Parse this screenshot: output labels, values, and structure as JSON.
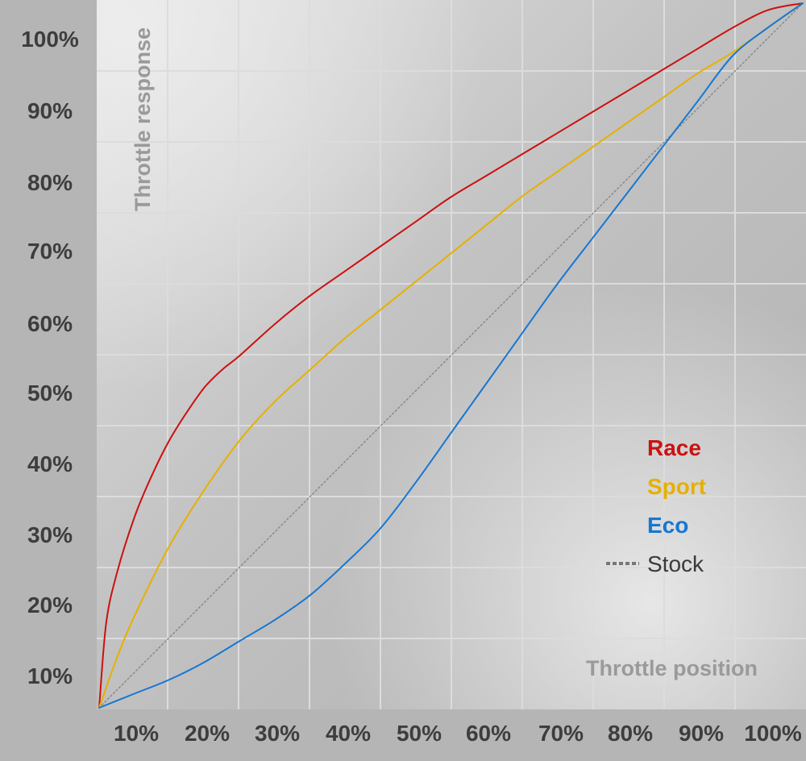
{
  "chart_data": {
    "type": "line",
    "ylabel": "Throttle response",
    "xlabel": "Throttle position",
    "x_ticks": [
      "10%",
      "20%",
      "30%",
      "40%",
      "50%",
      "60%",
      "70%",
      "80%",
      "90%",
      "100%"
    ],
    "y_ticks": [
      "10%",
      "20%",
      "30%",
      "40%",
      "50%",
      "60%",
      "70%",
      "80%",
      "90%",
      "100%"
    ],
    "xlim": [
      0,
      100
    ],
    "ylim": [
      0,
      100
    ],
    "grid": true,
    "legend_position": "bottom-right",
    "series": [
      {
        "name": "Race",
        "color": "#cc1111",
        "style": "solid",
        "x": [
          0,
          1,
          2.5,
          5,
          7.5,
          10,
          12.5,
          15,
          17.5,
          20,
          25,
          30,
          35,
          40,
          45,
          50,
          55,
          60,
          65,
          70,
          75,
          80,
          85,
          90,
          95,
          100
        ],
        "y": [
          0,
          12,
          19,
          27,
          33,
          38,
          42,
          45.5,
          48,
          50,
          54.5,
          58.5,
          62,
          65.5,
          69,
          72.5,
          75.5,
          78.5,
          81.5,
          84.5,
          87.5,
          90.5,
          93.5,
          96.5,
          99,
          100
        ]
      },
      {
        "name": "Sport",
        "color": "#e6b000",
        "style": "solid",
        "x": [
          0,
          2.5,
          5,
          10,
          15,
          20,
          25,
          30,
          35,
          40,
          45,
          50,
          55,
          60,
          65,
          70,
          75,
          80,
          85,
          90,
          95,
          100
        ],
        "y": [
          0,
          7,
          13,
          23,
          31,
          38,
          43.5,
          48,
          52.5,
          56.5,
          60.5,
          64.5,
          68.5,
          72.5,
          76,
          79.5,
          83,
          86.5,
          90,
          93,
          96.5,
          100
        ]
      },
      {
        "name": "Eco",
        "color": "#1677d2",
        "style": "solid",
        "x": [
          0,
          5,
          10,
          15,
          20,
          25,
          30,
          35,
          40,
          45,
          50,
          55,
          60,
          65,
          70,
          75,
          80,
          85,
          90,
          95,
          100
        ],
        "y": [
          0,
          2,
          4,
          6.5,
          9.5,
          12.5,
          16,
          20.5,
          25.5,
          32,
          39,
          46,
          53,
          60,
          66.5,
          73,
          79.5,
          86,
          92.5,
          96.5,
          100
        ]
      },
      {
        "name": "Stock",
        "color": "#8a8a8a",
        "style": "dotted",
        "x": [
          0,
          100
        ],
        "y": [
          0,
          100
        ]
      }
    ]
  }
}
